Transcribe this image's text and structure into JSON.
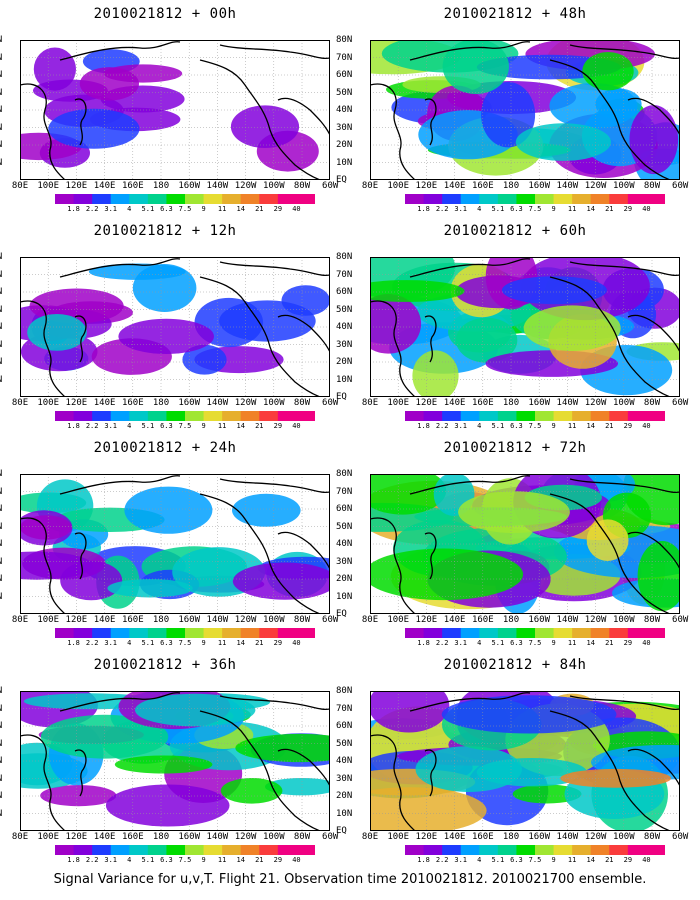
{
  "caption": "Signal Variance for u,v,T. Flight 21. Observation time 2010021812. 2010021700 ensemble.",
  "colorbar": {
    "labels": [
      "1.8",
      "2.2",
      "3.1",
      "4",
      "5.1",
      "6.3",
      "7.5",
      "9",
      "11",
      "14",
      "21",
      "29",
      "40"
    ],
    "colors": [
      "#a000c8",
      "#8200dc",
      "#1e3cff",
      "#00a0ff",
      "#00c8c8",
      "#00d28c",
      "#00dc00",
      "#a0e632",
      "#e6dc32",
      "#e6af2d",
      "#f08228",
      "#fa3c3c",
      "#f00082"
    ]
  },
  "lat_labels": [
    "80N",
    "70N",
    "60N",
    "50N",
    "40N",
    "30N",
    "20N",
    "10N",
    "EQ"
  ],
  "lon_labels": [
    "80E",
    "100E",
    "120E",
    "140E",
    "160E",
    "180",
    "160W",
    "140W",
    "120W",
    "100W",
    "80W",
    "60W"
  ],
  "chart_data": [
    {
      "type": "heatmap",
      "title": "2010021812 + 00h",
      "intensity": 0.12
    },
    {
      "type": "heatmap",
      "title": "2010021812 + 12h",
      "intensity": 0.28
    },
    {
      "type": "heatmap",
      "title": "2010021812 + 24h",
      "intensity": 0.45
    },
    {
      "type": "heatmap",
      "title": "2010021812 + 36h",
      "intensity": 0.58
    },
    {
      "type": "heatmap",
      "title": "2010021812 + 48h",
      "intensity": 0.72
    },
    {
      "type": "heatmap",
      "title": "2010021812 + 60h",
      "intensity": 0.8
    },
    {
      "type": "heatmap",
      "title": "2010021812 + 72h",
      "intensity": 0.9
    },
    {
      "type": "heatmap",
      "title": "2010021812 + 84h",
      "intensity": 1.0
    }
  ]
}
